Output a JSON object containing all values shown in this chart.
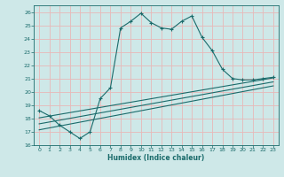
{
  "xlabel": "Humidex (Indice chaleur)",
  "background_color": "#cee8e8",
  "line_color": "#1a6b6b",
  "grid_color": "#e8b8b8",
  "xlim": [
    -0.5,
    23.5
  ],
  "ylim": [
    16,
    26.5
  ],
  "xticks": [
    0,
    1,
    2,
    3,
    4,
    5,
    6,
    7,
    8,
    9,
    10,
    11,
    12,
    13,
    14,
    15,
    16,
    17,
    18,
    19,
    20,
    21,
    22,
    23
  ],
  "yticks": [
    16,
    17,
    18,
    19,
    20,
    21,
    22,
    23,
    24,
    25,
    26
  ],
  "curve1_x": [
    0,
    1,
    2,
    3,
    4,
    5,
    6,
    7,
    8,
    9,
    10,
    11,
    12,
    13,
    14,
    15,
    16,
    17,
    18,
    19,
    20,
    21,
    22,
    23
  ],
  "curve1_y": [
    18.6,
    18.2,
    17.5,
    17.0,
    16.5,
    17.0,
    19.5,
    20.3,
    24.8,
    25.3,
    25.9,
    25.2,
    24.8,
    24.7,
    25.3,
    25.7,
    24.1,
    23.1,
    21.7,
    21.0,
    20.9,
    20.9,
    21.0,
    21.1
  ],
  "line1_x": [
    0,
    23
  ],
  "line1_y": [
    18.05,
    21.05
  ],
  "line2_x": [
    0,
    23
  ],
  "line2_y": [
    17.6,
    20.75
  ],
  "line3_x": [
    0,
    23
  ],
  "line3_y": [
    17.15,
    20.45
  ]
}
